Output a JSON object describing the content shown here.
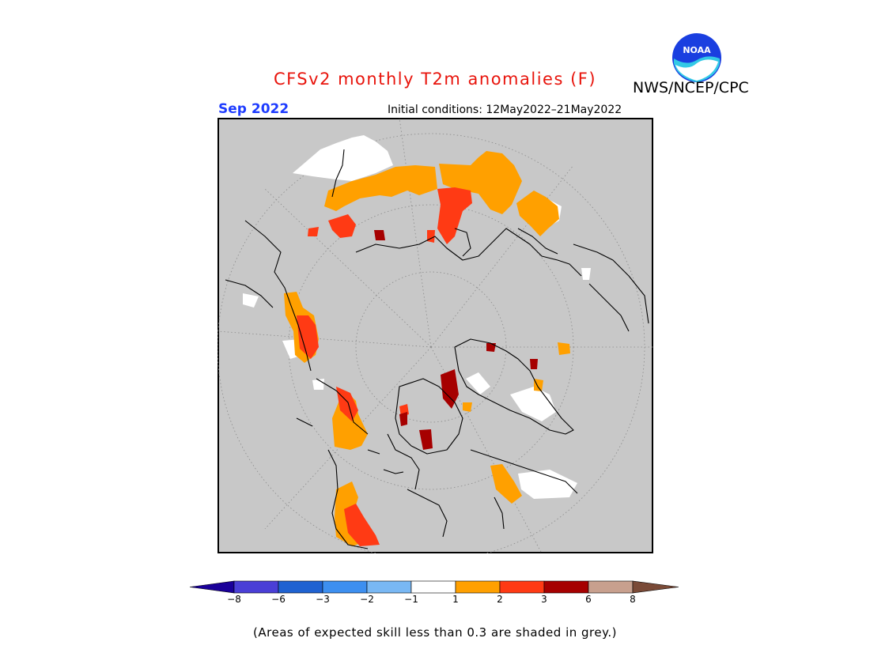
{
  "header": {
    "title": "CFSv2 monthly T2m anomalies (F)",
    "org": "NWS/NCEP/CPC",
    "logo_text": "NOAA",
    "period": "Sep 2022",
    "initial_conditions": "Initial conditions: 12May2022–21May2022"
  },
  "map": {
    "projection": "north polar stereographic",
    "background_color": "#c8c8c8",
    "gridlines": "dotted"
  },
  "colorbar": {
    "labels": [
      "−8",
      "−6",
      "−3",
      "−2",
      "−1",
      "1",
      "2",
      "3",
      "6",
      "8"
    ],
    "colors": [
      "#1a0099",
      "#4a3fd6",
      "#1f62d1",
      "#3d8ff0",
      "#79b8f4",
      "#ffffff",
      "#ffa000",
      "#ff3a14",
      "#a60000",
      "#c8a08e",
      "#7a4a37"
    ]
  },
  "footnote": "(Areas of expected skill less than 0.3 are shaded in grey.)",
  "anomaly_colors": {
    "white": "#ffffff",
    "orange": "#ffa000",
    "red": "#ff3a14",
    "darkred": "#a60000",
    "maroon": "#6e0000"
  }
}
